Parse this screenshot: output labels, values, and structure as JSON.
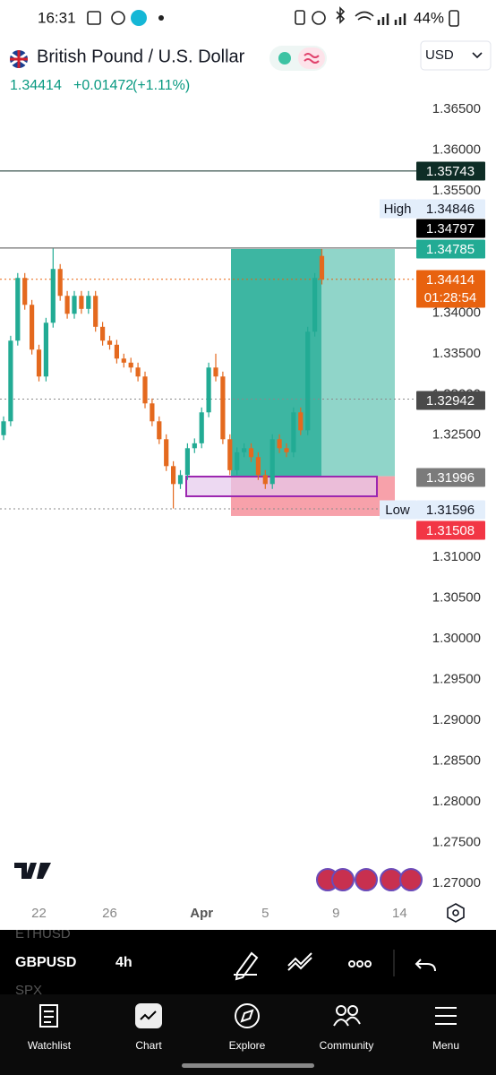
{
  "status_bar": {
    "time": "16:31",
    "battery": "44%"
  },
  "header": {
    "symbol": "British Pound / U.S. Dollar",
    "currency": "USD",
    "price": "1.34414",
    "change": "+0.01472",
    "change_pct": "(+1.11%)"
  },
  "chart_data": {
    "type": "candlestick",
    "categories": [
      null,
      null,
      null,
      null,
      null,
      "22",
      null,
      null,
      null,
      null,
      null,
      null,
      null,
      null,
      null,
      "26",
      null,
      null,
      null,
      null,
      null,
      null,
      null,
      null,
      null,
      null,
      null,
      null,
      "Apr",
      null,
      null,
      null,
      null,
      null,
      null,
      null,
      null,
      "5",
      null,
      null,
      null,
      null,
      null,
      null,
      null,
      null,
      null,
      "9",
      null,
      null,
      null,
      null,
      null,
      null,
      null,
      null,
      "14",
      null
    ],
    "open": [
      1.325,
      1.3267,
      1.3366,
      1.3443,
      1.341,
      1.3355,
      1.3322,
      1.3388,
      1.3454,
      1.3421,
      1.3399,
      1.3421,
      1.3405,
      1.3421,
      1.3383,
      1.3366,
      1.3361,
      1.3344,
      1.3339,
      1.3333,
      1.3322,
      1.3289,
      1.3267,
      1.3245,
      1.3212,
      1.319,
      1.3201,
      1.3234,
      1.324,
      1.3278,
      1.3333,
      1.3322,
      1.3245,
      1.3207,
      1.3229,
      1.3234,
      1.3223,
      1.3201,
      1.319,
      1.3245,
      1.3234,
      1.3229,
      1.3278,
      1.3256,
      1.3377,
      1.347,
      null,
      null,
      null,
      null,
      null,
      null,
      null,
      null,
      null,
      null,
      null,
      null
    ],
    "high": [
      1.3273,
      1.3372,
      1.3449,
      1.3449,
      1.3416,
      1.3361,
      1.3394,
      1.3479,
      1.346,
      1.3427,
      1.3427,
      1.3427,
      1.3427,
      1.3427,
      1.3389,
      1.3372,
      1.3367,
      1.335,
      1.3345,
      1.3339,
      1.3328,
      1.3295,
      1.3273,
      1.3251,
      1.3218,
      1.3207,
      1.324,
      1.3246,
      1.3284,
      1.3339,
      1.335,
      1.3328,
      1.3251,
      1.3235,
      1.324,
      1.324,
      1.3229,
      1.3207,
      1.3251,
      1.3251,
      1.324,
      1.3284,
      1.3284,
      1.3383,
      1.3449,
      1.34785,
      null,
      null,
      null,
      null,
      null,
      null,
      null,
      null,
      null,
      null,
      null,
      null
    ],
    "low": [
      1.3244,
      1.3261,
      1.336,
      1.3404,
      1.3349,
      1.3316,
      1.3316,
      1.3382,
      1.3415,
      1.3393,
      1.3393,
      1.3399,
      1.3399,
      1.3377,
      1.336,
      1.3355,
      1.3338,
      1.3333,
      1.3327,
      1.3316,
      1.3283,
      1.3261,
      1.3239,
      1.3206,
      1.316,
      1.3184,
      1.3195,
      1.3228,
      1.3234,
      1.3272,
      1.3316,
      1.3239,
      1.3201,
      1.3201,
      1.3223,
      1.3217,
      1.3195,
      1.3184,
      1.3184,
      1.3228,
      1.3223,
      1.3223,
      1.325,
      1.325,
      1.3371,
      1.3435,
      null,
      null,
      null,
      null,
      null,
      null,
      null,
      null,
      null,
      null,
      null,
      null
    ],
    "close": [
      1.3267,
      1.3366,
      1.3443,
      1.341,
      1.3355,
      1.3322,
      1.3388,
      1.3454,
      1.3421,
      1.3399,
      1.3421,
      1.3405,
      1.3421,
      1.3383,
      1.3366,
      1.3361,
      1.3344,
      1.3339,
      1.3333,
      1.3322,
      1.3289,
      1.3267,
      1.3245,
      1.3212,
      1.319,
      1.3201,
      1.3234,
      1.324,
      1.3278,
      1.3333,
      1.3322,
      1.3245,
      1.3207,
      1.3229,
      1.3234,
      1.3223,
      1.3201,
      1.319,
      1.3245,
      1.3234,
      1.3229,
      1.3278,
      1.3256,
      1.3377,
      1.3443,
      1.34414,
      null,
      null,
      null,
      null,
      null,
      null,
      null,
      null,
      null,
      null,
      null,
      null
    ],
    "up_color": "#22ab94",
    "down_color": "#e4691e",
    "ylim": [
      1.2679,
      1.36907
    ],
    "yticks": [
      {
        "value": 1.365,
        "label": "1.36500"
      },
      {
        "value": 1.36,
        "label": "1.36000"
      },
      {
        "value": 1.355,
        "label": "1.35500"
      },
      {
        "value": 1.34,
        "label": "1.34000"
      },
      {
        "value": 1.335,
        "label": "1.33500"
      },
      {
        "value": 1.33,
        "label": "1.33000"
      },
      {
        "value": 1.325,
        "label": "1.32500"
      },
      {
        "value": 1.31,
        "label": "1.31000"
      },
      {
        "value": 1.305,
        "label": "1.30500"
      },
      {
        "value": 1.3,
        "label": "1.30000"
      },
      {
        "value": 1.295,
        "label": "1.29500"
      },
      {
        "value": 1.29,
        "label": "1.29000"
      },
      {
        "value": 1.285,
        "label": "1.28500"
      },
      {
        "value": 1.28,
        "label": "1.28000"
      },
      {
        "value": 1.275,
        "label": "1.27500"
      },
      {
        "value": 1.27,
        "label": "1.27000"
      }
    ],
    "position": {
      "target": 1.34785,
      "entry": 1.31996,
      "stop": 1.31508,
      "profit_color": "#22ab94",
      "loss_color": "#f7a1aa"
    },
    "price_labels": [
      {
        "value": 1.35743,
        "color": "#0e2d26",
        "text_color": "#ffffff",
        "line": "solid",
        "line_color": "#0e2d26"
      },
      {
        "value": 1.34846,
        "caption": "High",
        "color": "#e3eefb",
        "text_color": "#131722"
      },
      {
        "value": 1.34797,
        "color": "#000000",
        "text_color": "#ffffff",
        "line": "solid",
        "line_color": "#4d4d4d"
      },
      {
        "value": 1.34785,
        "color": "#22ab94",
        "text_color": "#ffffff"
      },
      {
        "value": 1.34414,
        "countdown": "01:28:54",
        "color": "#e8620f",
        "text_color": "#ffffff",
        "line": "dotted",
        "line_color": "#e8620f"
      },
      {
        "value": 1.32942,
        "color": "#4a4a4a",
        "text_color": "#ffffff",
        "line": "dotted",
        "line_color": "#8a8a8a"
      },
      {
        "value": 1.31996,
        "color": "#7b7b7b",
        "text_color": "#ffffff"
      },
      {
        "value": 1.31596,
        "caption": "Low",
        "color": "#e3eefb",
        "text_color": "#131722",
        "line": "dotted",
        "line_color": "#8a8a8a"
      },
      {
        "value": 1.31508,
        "color": "#f23645",
        "text_color": "#ffffff"
      }
    ]
  },
  "toolbar": {
    "list_above": "ETHUSD",
    "symbol": "GBPUSD",
    "interval": "4h",
    "list_below": "SPX"
  },
  "nav": [
    "Watchlist",
    "Chart",
    "Explore",
    "Community",
    "Menu"
  ]
}
